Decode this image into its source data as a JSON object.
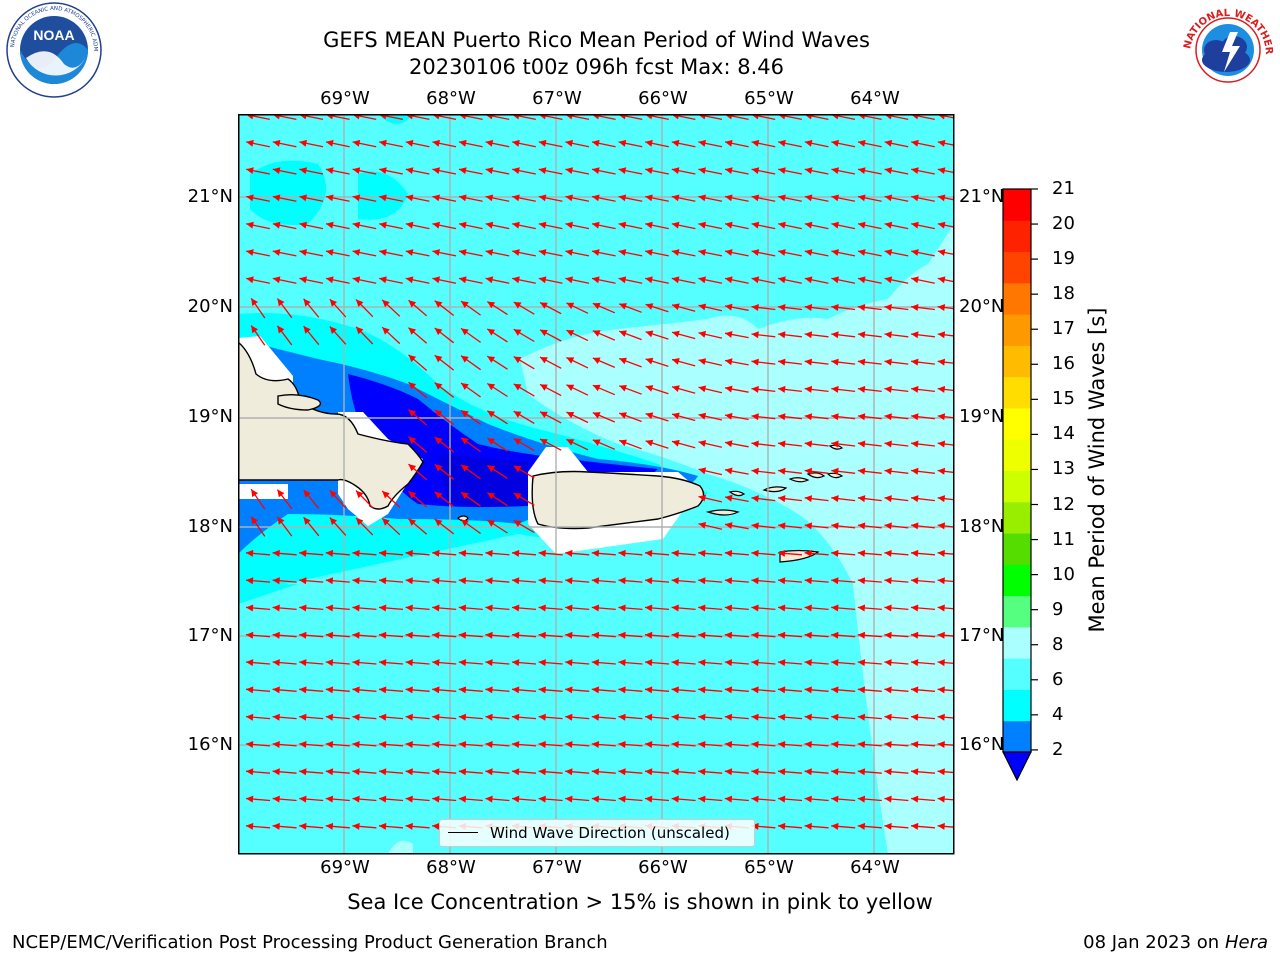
{
  "title": {
    "line1": "GEFS MEAN Puerto Rico Mean Period of Wind Waves",
    "line2": "20230106 t00z 096h fcst   Max: 8.46"
  },
  "logos": {
    "left": {
      "icon": "noaa-logo-icon",
      "text": "NOAA",
      "ring_text": "NATIONAL OCEANIC AND ATMOSPHERIC ADMINISTRATION · U.S. DEPARTMENT OF COMMERCE"
    },
    "right": {
      "icon": "nws-logo-icon",
      "ring_text": "NATIONAL WEATHER SERVICE"
    }
  },
  "map": {
    "lon_labels": [
      "69°W",
      "68°W",
      "67°W",
      "66°W",
      "65°W",
      "64°W"
    ],
    "lat_labels": [
      "21°N",
      "20°N",
      "19°N",
      "18°N",
      "17°N",
      "16°N"
    ],
    "legend_label": "Wind Wave Direction (unscaled)",
    "arrow_color": "#ff0000",
    "land_color": "#efecdc",
    "ocean_colors": {
      "light": "#aaffff",
      "mid": "#55ffff",
      "cyan": "#00ffff",
      "blue": "#0080ff",
      "dark_blue": "#0000ff",
      "darkest": "#0000e0"
    }
  },
  "colorbar": {
    "label": "Mean Period of Wind Waves [s]",
    "ticks": [
      "21",
      "20",
      "19",
      "18",
      "17",
      "16",
      "15",
      "14",
      "13",
      "12",
      "11",
      "10",
      "9",
      "8",
      "6",
      "4",
      "2"
    ],
    "colors_bottom_to_top": [
      "#0080ff",
      "#00ffff",
      "#55ffff",
      "#aaffff",
      "#55ff80",
      "#00ff00",
      "#55dd00",
      "#99ee00",
      "#ccff00",
      "#eeff00",
      "#ffff00",
      "#ffdd00",
      "#ffbb00",
      "#ff9900",
      "#ff7700",
      "#ff4400",
      "#ff2200",
      "#ff0000"
    ],
    "extend_color": "#0000ff"
  },
  "subtitle": "Sea Ice Concentration > 15% is shown in pink to yellow",
  "footer": {
    "left": "NCEP/EMC/Verification Post Processing Product Generation Branch",
    "right_prefix": "08 Jan 2023 on ",
    "right_host": "Hera"
  }
}
